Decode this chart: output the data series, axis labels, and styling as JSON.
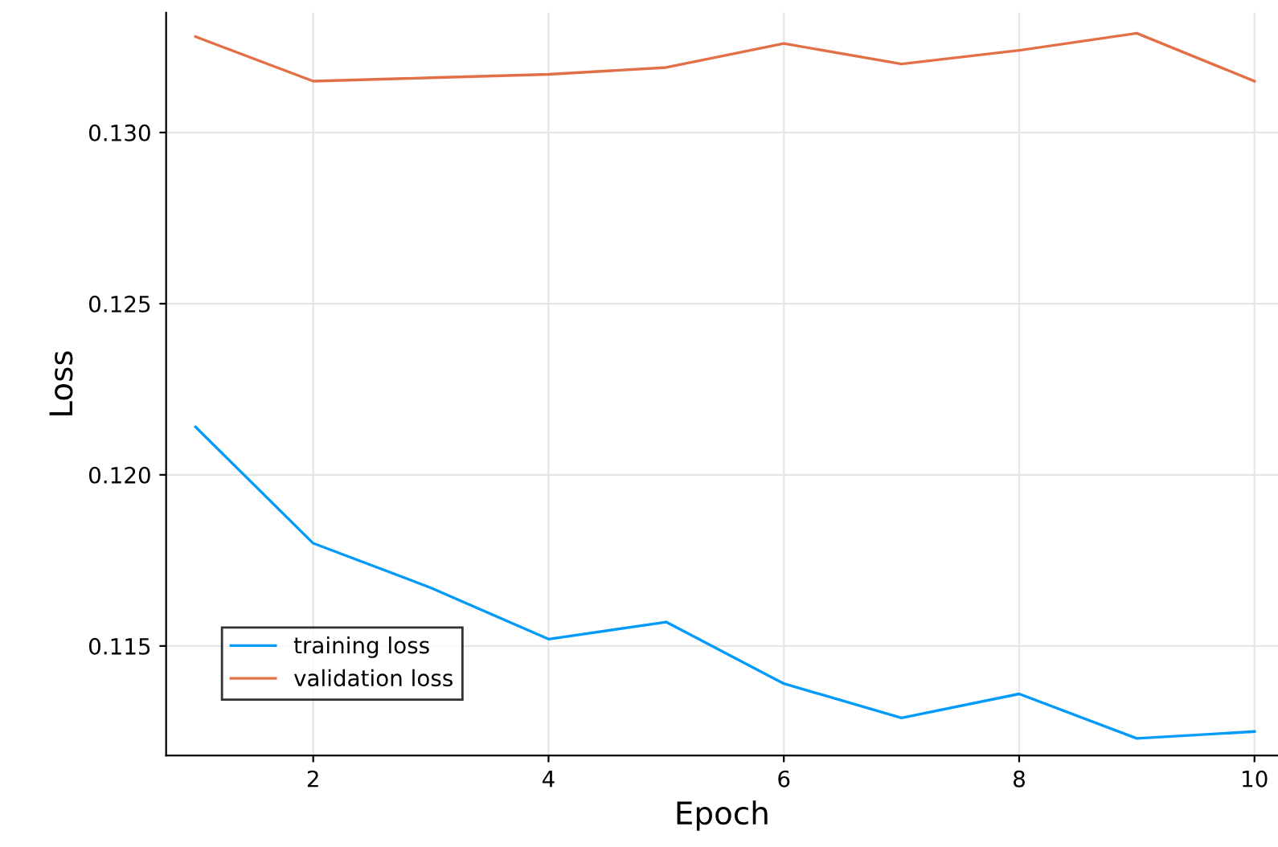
{
  "chart_data": {
    "type": "line",
    "xlabel": "Epoch",
    "ylabel": "Loss",
    "x": [
      1,
      2,
      3,
      4,
      5,
      6,
      7,
      8,
      9,
      10
    ],
    "series": [
      {
        "name": "training loss",
        "color": "#009af9",
        "values": [
          0.1214,
          0.118,
          0.1167,
          0.1152,
          0.1157,
          0.1139,
          0.1129,
          0.1136,
          0.1123,
          0.1125
        ]
      },
      {
        "name": "validation loss",
        "color": "#e26f46",
        "values": [
          0.1328,
          0.1315,
          0.1316,
          0.1317,
          0.1319,
          0.1326,
          0.132,
          0.1324,
          0.1329,
          0.1315
        ]
      }
    ],
    "xlim": [
      0.75,
      10.2
    ],
    "ylim": [
      0.1118,
      0.1335
    ],
    "xticks": [
      2,
      4,
      6,
      8,
      10
    ],
    "yticks": [
      {
        "value": 0.115,
        "label": "0.115"
      },
      {
        "value": 0.12,
        "label": "0.120"
      },
      {
        "value": 0.125,
        "label": "0.125"
      },
      {
        "value": 0.13,
        "label": "0.130"
      }
    ],
    "grid": true,
    "legend": "bottom left",
    "marker": "none",
    "line_style": "solid"
  }
}
